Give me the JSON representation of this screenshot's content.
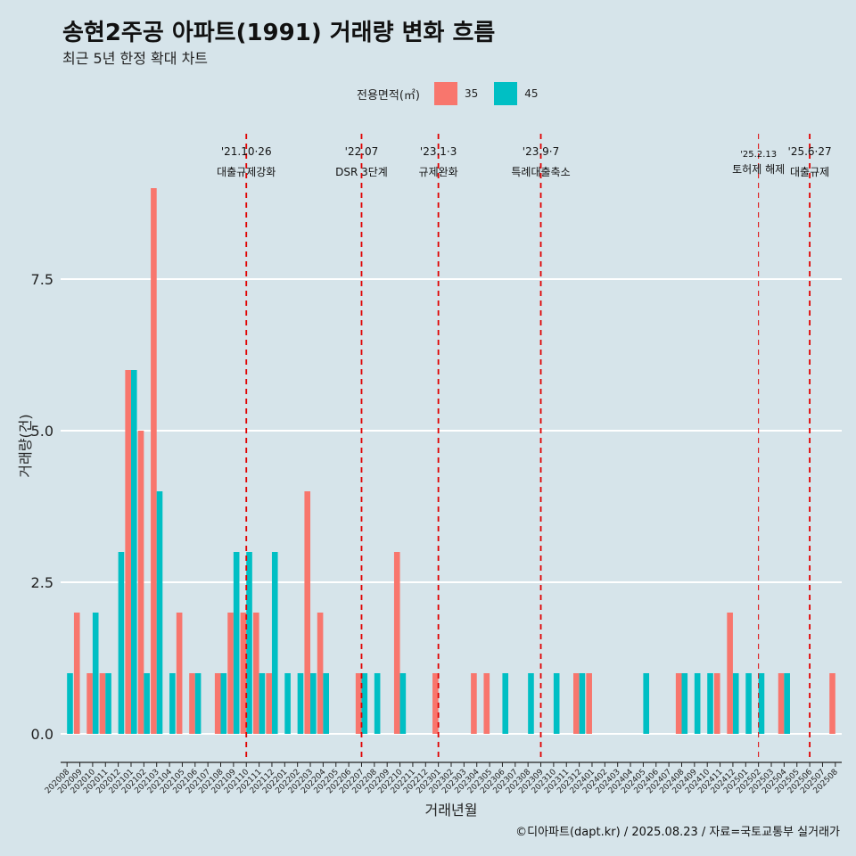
{
  "title": "송현2주공 아파트(1991) 거래량 변화 흐름",
  "subtitle": "최근 5년 한정 확대 차트",
  "caption": "©디아파트(dapt.kr) / 2025.08.23 / 자료=국토교통부 실거래가",
  "legend": {
    "title": "전용면적(㎡)",
    "items": [
      {
        "label": "35",
        "color": "#f8766d"
      },
      {
        "label": "45",
        "color": "#00bfc4"
      }
    ]
  },
  "chart_data": {
    "type": "bar",
    "xlabel": "거래년월",
    "ylabel": "거래량(건)",
    "ylim": [
      -0.5,
      9.8
    ],
    "yticks": [
      0.0,
      2.5,
      5.0,
      7.5
    ],
    "ytick_labels": [
      "0.0",
      "2.5",
      "5.0",
      "7.5"
    ],
    "categories": [
      "202008",
      "202009",
      "202010",
      "202011",
      "202012",
      "202101",
      "202102",
      "202103",
      "202104",
      "202105",
      "202106",
      "202107",
      "202108",
      "202109",
      "202110",
      "202111",
      "202112",
      "202201",
      "202202",
      "202203",
      "202204",
      "202205",
      "202206",
      "202207",
      "202208",
      "202209",
      "202210",
      "202211",
      "202212",
      "202301",
      "202302",
      "202303",
      "202304",
      "202305",
      "202306",
      "202307",
      "202308",
      "202309",
      "202310",
      "202311",
      "202312",
      "202401",
      "202402",
      "202403",
      "202404",
      "202405",
      "202406",
      "202407",
      "202408",
      "202409",
      "202410",
      "202411",
      "202412",
      "202501",
      "202502",
      "202503",
      "202504",
      "202505",
      "202506",
      "202507",
      "202508"
    ],
    "series": [
      {
        "name": "35",
        "color": "#f8766d",
        "values": [
          0,
          2,
          1,
          1,
          0,
          6,
          5,
          9,
          0,
          2,
          1,
          0,
          1,
          2,
          2,
          2,
          1,
          0,
          0,
          4,
          2,
          0,
          0,
          1,
          0,
          0,
          3,
          0,
          0,
          1,
          0,
          0,
          1,
          1,
          0,
          0,
          0,
          0,
          0,
          0,
          1,
          1,
          0,
          0,
          0,
          0,
          0,
          0,
          1,
          0,
          0,
          1,
          2,
          0,
          0,
          0,
          1,
          0,
          0,
          0,
          1
        ]
      },
      {
        "name": "45",
        "color": "#00bfc4",
        "values": [
          1,
          0,
          2,
          1,
          3,
          6,
          1,
          4,
          1,
          0,
          1,
          0,
          1,
          3,
          3,
          1,
          3,
          1,
          1,
          1,
          1,
          0,
          0,
          1,
          1,
          0,
          1,
          0,
          0,
          0,
          0,
          0,
          0,
          0,
          1,
          0,
          1,
          0,
          1,
          0,
          1,
          0,
          0,
          0,
          0,
          1,
          0,
          0,
          1,
          1,
          1,
          0,
          1,
          1,
          1,
          0,
          1,
          0,
          0,
          0,
          0
        ]
      }
    ],
    "events": [
      {
        "position": "202110",
        "date": "'21.10·26",
        "label": "대출규제강화"
      },
      {
        "position": "202207",
        "date": "'22.07",
        "label": "DSR 3단계"
      },
      {
        "position": "202301",
        "date": "'23.1·3",
        "label": "규제완화"
      },
      {
        "position": "202309",
        "date": "'23.9·7",
        "label": "특례대출축소"
      },
      {
        "position": "202502",
        "date": "'25.2.13",
        "label": "토허제 해제"
      },
      {
        "position": "202506",
        "date": "'25.6·27",
        "label": "대출규제"
      }
    ]
  }
}
